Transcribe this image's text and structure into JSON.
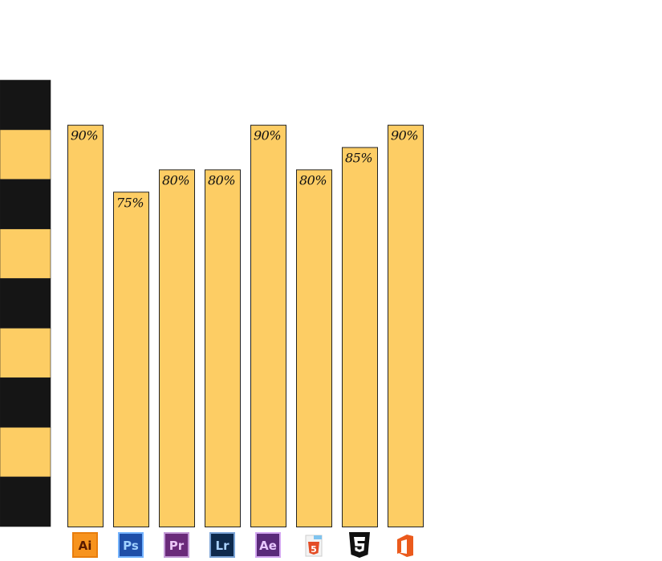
{
  "chart_data": {
    "type": "bar",
    "categories": [
      "Ai",
      "Ps",
      "Pr",
      "Lr",
      "Ae",
      "5",
      "CSS3",
      "Office"
    ],
    "values": [
      90,
      75,
      80,
      80,
      90,
      80,
      85,
      90
    ],
    "data_labels": [
      "90%",
      "75%",
      "80%",
      "80%",
      "90%",
      "80%",
      "85%",
      "90%"
    ],
    "ylim": [
      0,
      100
    ],
    "grid": false,
    "legend": "none",
    "colors": {
      "bar_fill": "#fdcd64",
      "bar_stroke": "#222222",
      "scale_dark": "#151515",
      "scale_light": "#fdcd64"
    },
    "scale_band_colors": [
      "dark",
      "light",
      "dark",
      "light",
      "dark",
      "light",
      "dark",
      "light",
      "dark"
    ]
  },
  "icons": [
    {
      "name": "illustrator-icon",
      "text": "Ai",
      "bg": "#f7931e",
      "border": "#e87d0d",
      "fg": "#5a1a00"
    },
    {
      "name": "photoshop-icon",
      "text": "Ps",
      "bg": "#1e4ea8",
      "border": "#74b3ff",
      "fg": "#9fd0ff"
    },
    {
      "name": "premiere-icon",
      "text": "Pr",
      "bg": "#6a2a7a",
      "border": "#c39ad6",
      "fg": "#e9c6f5"
    },
    {
      "name": "lightroom-icon",
      "text": "Lr",
      "bg": "#0e2a4d",
      "border": "#7aa3d6",
      "fg": "#a9d1ff"
    },
    {
      "name": "after-effects-icon",
      "text": "Ae",
      "bg": "#5a2a7a",
      "border": "#d3a6f0",
      "fg": "#e8c8ff"
    },
    {
      "name": "html5-icon",
      "text": "5",
      "bg": "#e44d26",
      "border": "#e44d26",
      "fg": "#ffffff"
    },
    {
      "name": "css3-icon",
      "text": "3",
      "bg": "#111111",
      "border": "#111111",
      "fg": "#ffffff"
    },
    {
      "name": "office-icon",
      "text": "",
      "bg": "#eb5a1c",
      "border": "#eb5a1c",
      "fg": "#ffffff"
    }
  ]
}
